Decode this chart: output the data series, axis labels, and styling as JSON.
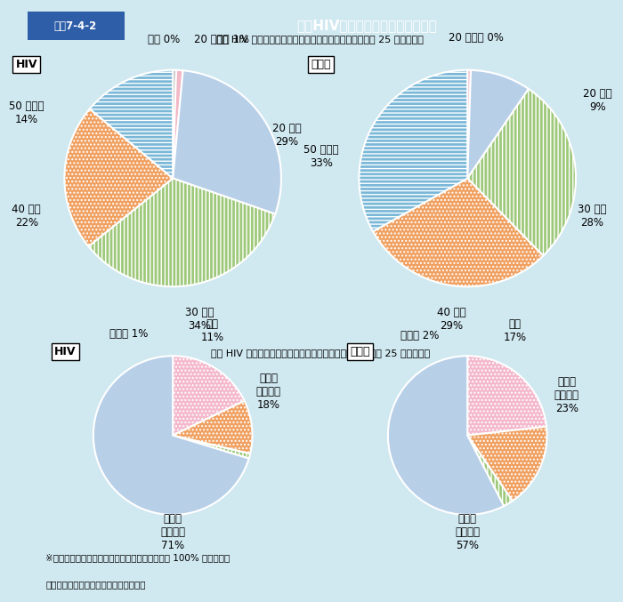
{
  "title_header": "図表7-4-2",
  "title_main": "新規HIV感染者・エイズ患者の状況",
  "subtitle1": "新規 HIV 感染者・エイズ患者報告数　年代別内訳《平成 25 年速報値》",
  "subtitle2": "新規 HIV 感染者・エイズ患者報告数　感染経路別内訳《平成 25 年速報値》",
  "footnote1": "※小数点第１位を四捨五入しているため、合計は 100% とならない",
  "footnote2": "資料：厚生労働省エイズ動向委員会報告",
  "hiv_age_values": [
    0.5,
    1,
    29,
    34,
    22,
    14
  ],
  "hiv_age_colors": [
    "#b0b0b0",
    "#f2b8c6",
    "#b8cfe8",
    "#9ec87a",
    "#f0a060",
    "#7ab8d8"
  ],
  "hiv_age_hatches": [
    "",
    "",
    "",
    "||||",
    "....",
    "----"
  ],
  "hiv_age_labels_text": [
    "不明 0%",
    "20 歳未満 1%",
    "20 歳代\n29%",
    "30 歳代\n34%",
    "40 歳代\n22%",
    "50 歳以上\n14%"
  ],
  "aids_age_values": [
    0.5,
    9,
    28,
    29,
    33
  ],
  "aids_age_colors": [
    "#f2b8c6",
    "#b8cfe8",
    "#9ec87a",
    "#f0a060",
    "#7ab8d8"
  ],
  "aids_age_hatches": [
    "",
    "",
    "||||",
    "....",
    "----"
  ],
  "aids_age_labels_text": [
    "20 歳未満 0%",
    "20 歳代\n9%",
    "30 歳代\n28%",
    "40 歳代\n29%",
    "50 歳以上\n33%"
  ],
  "hiv_route_values": [
    18,
    11,
    1,
    71
  ],
  "hiv_route_colors": [
    "#f4b8cc",
    "#f0a060",
    "#9ec87a",
    "#b8cfe8"
  ],
  "hiv_route_hatches": [
    "....",
    "....",
    "||||",
    ""
  ],
  "hiv_route_labels_text": [
    "異性間\n性的接触\n18%",
    "不明\n11%",
    "その他 1%",
    "同性間\n性的接触\n71%"
  ],
  "aids_route_values": [
    23,
    17,
    2,
    57
  ],
  "aids_route_colors": [
    "#f4b8cc",
    "#f0a060",
    "#9ec87a",
    "#b8cfe8"
  ],
  "aids_route_hatches": [
    "....",
    "....",
    "||||",
    ""
  ],
  "aids_route_labels_text": [
    "異性間\n性的接触\n23%",
    "不明\n17%",
    "その他 2%",
    "同性間\n性的接触\n57%"
  ],
  "bg_color": "#d0e8f0",
  "panel_bg": "#ffffff",
  "header_bg": "#4472c4",
  "header_label_bg": "#2e5ea8"
}
